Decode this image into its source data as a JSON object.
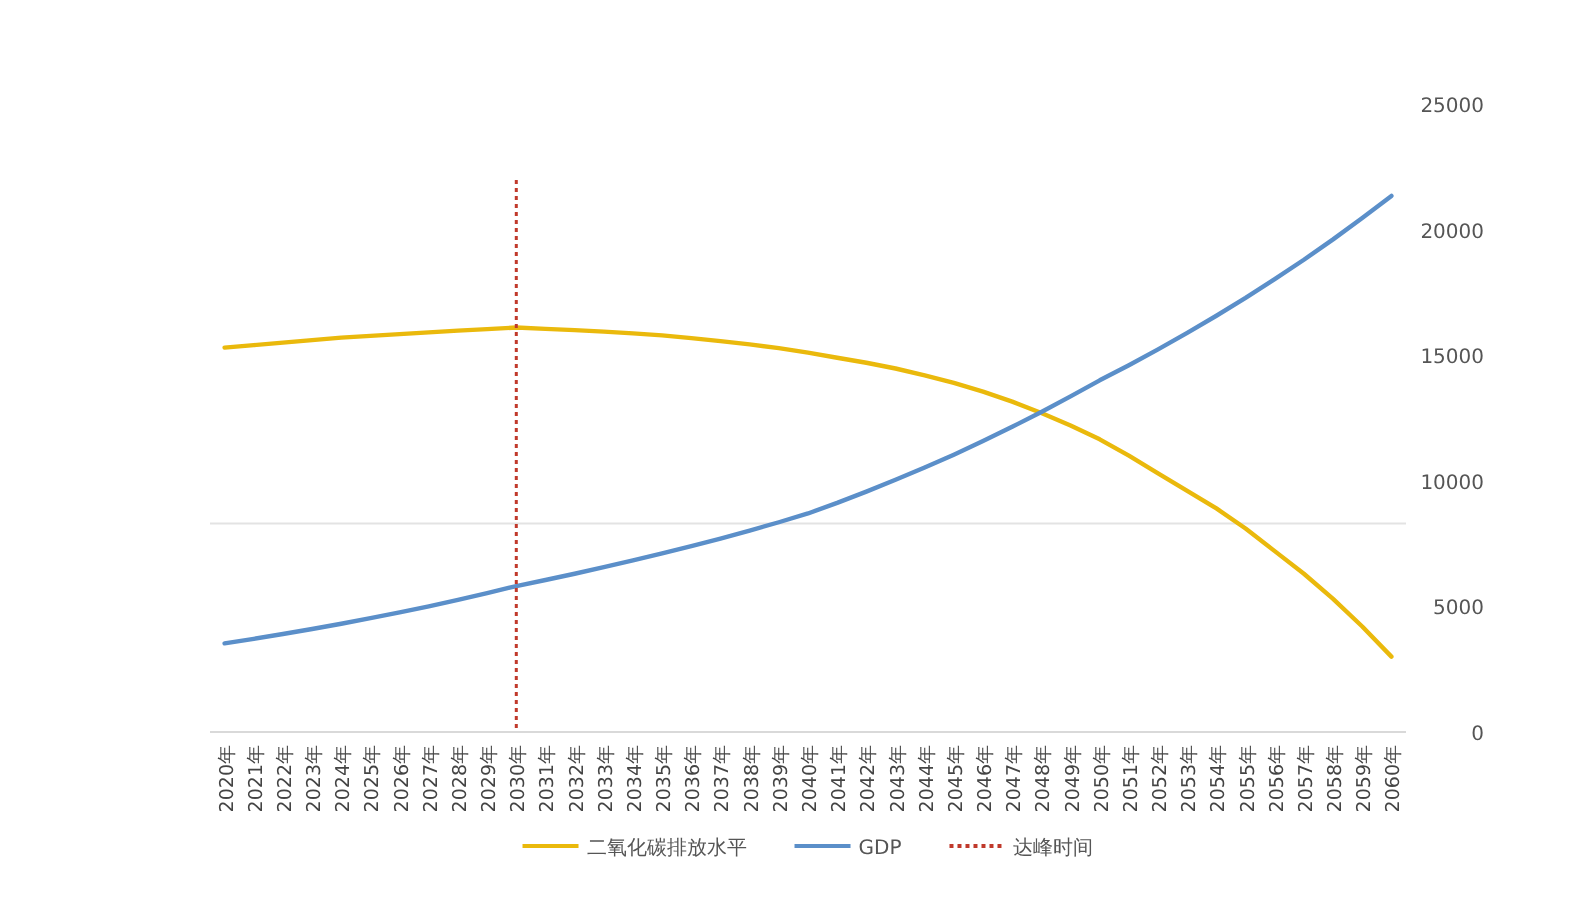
{
  "chart_data": {
    "type": "line",
    "categories": [
      "2020年",
      "2021年",
      "2022年",
      "2023年",
      "2024年",
      "2025年",
      "2026年",
      "2027年",
      "2028年",
      "2029年",
      "2030年",
      "2031年",
      "2032年",
      "2033年",
      "2034年",
      "2035年",
      "2036年",
      "2037年",
      "2038年",
      "2039年",
      "2040年",
      "2041年",
      "2042年",
      "2043年",
      "2044年",
      "2045年",
      "2046年",
      "2047年",
      "2048年",
      "2049年",
      "2050年",
      "2051年",
      "2052年",
      "2053年",
      "2054年",
      "2055年",
      "2056年",
      "2057年",
      "2058年",
      "2059年",
      "2060年"
    ],
    "series": [
      {
        "name": "二氧化碳排放水平",
        "color": "#eab90c",
        "values": [
          15300,
          15400,
          15500,
          15600,
          15700,
          15770,
          15840,
          15910,
          15980,
          16040,
          16100,
          16050,
          16000,
          15940,
          15870,
          15790,
          15680,
          15560,
          15430,
          15280,
          15100,
          14900,
          14700,
          14470,
          14200,
          13900,
          13550,
          13150,
          12700,
          12200,
          11650,
          11000,
          10300,
          9600,
          8900,
          8100,
          7200,
          6300,
          5300,
          4200,
          3000
        ]
      },
      {
        "name": "GDP",
        "color": "#5b8fc9",
        "values": [
          3530,
          3710,
          3900,
          4100,
          4310,
          4530,
          4760,
          5000,
          5260,
          5530,
          5810,
          6050,
          6300,
          6560,
          6830,
          7110,
          7400,
          7700,
          8020,
          8350,
          8700,
          9120,
          9570,
          10040,
          10530,
          11040,
          11580,
          12150,
          12740,
          13360,
          14000,
          14600,
          15230,
          15890,
          16570,
          17280,
          18030,
          18800,
          19610,
          20460,
          21340
        ]
      }
    ],
    "ref_lines": [
      {
        "axis": "x",
        "value": "2030年",
        "label": "达峰时间",
        "color": "#c0392b",
        "line_style": "dotted"
      },
      {
        "axis": "y",
        "value": 8300,
        "color": "#e3e3e3"
      }
    ],
    "ylim": [
      0,
      25000
    ],
    "yticks": [
      0,
      5000,
      10000,
      15000,
      20000,
      25000
    ],
    "legend": "bottom",
    "grid": false,
    "marker": "none",
    "line_style": "solid"
  }
}
